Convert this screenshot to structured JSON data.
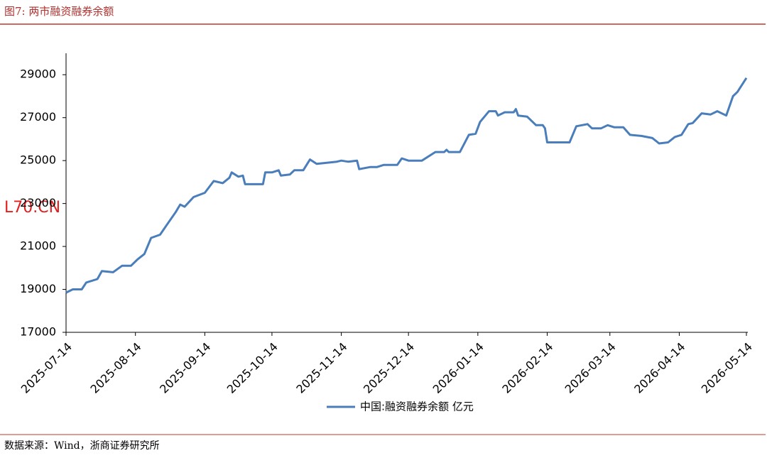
{
  "header": {
    "title": "图7:   两市融资融券余额"
  },
  "watermark": "L70.CN",
  "source": "数据来源：Wind，浙商证券研究所",
  "chart_data": {
    "type": "line",
    "x": [
      "2025-07-14",
      "2025-07-17",
      "2025-07-21",
      "2025-07-23",
      "2025-07-28",
      "2025-07-30",
      "2025-08-04",
      "2025-08-08",
      "2025-08-12",
      "2025-08-15",
      "2025-08-18",
      "2025-08-21",
      "2025-08-25",
      "2025-08-28",
      "2025-09-01",
      "2025-09-03",
      "2025-09-05",
      "2025-09-09",
      "2025-09-14",
      "2025-09-18",
      "2025-09-22",
      "2025-09-25",
      "2025-09-26",
      "2025-09-29",
      "2025-10-01",
      "2025-10-02",
      "2025-10-10",
      "2025-10-11",
      "2025-10-14",
      "2025-10-17",
      "2025-10-18",
      "2025-10-22",
      "2025-10-24",
      "2025-10-28",
      "2025-10-31",
      "2025-11-03",
      "2025-11-12",
      "2025-11-14",
      "2025-11-17",
      "2025-11-21",
      "2025-11-22",
      "2025-11-27",
      "2025-11-30",
      "2025-12-03",
      "2025-12-09",
      "2025-12-11",
      "2025-12-14",
      "2025-12-20",
      "2025-12-26",
      "2025-12-30",
      "2025-12-31",
      "2026-01-01",
      "2026-01-06",
      "2026-01-10",
      "2026-01-13",
      "2026-01-15",
      "2026-01-19",
      "2026-01-22",
      "2026-01-23",
      "2026-01-26",
      "2026-01-30",
      "2026-01-31",
      "2026-02-01",
      "2026-02-05",
      "2026-02-09",
      "2026-02-12",
      "2026-02-13",
      "2026-02-14",
      "2026-02-24",
      "2026-02-27",
      "2026-03-04",
      "2026-03-06",
      "2026-03-10",
      "2026-03-13",
      "2026-03-16",
      "2026-03-20",
      "2026-03-23",
      "2026-03-28",
      "2026-04-02",
      "2026-04-05",
      "2026-04-09",
      "2026-04-12",
      "2026-04-15",
      "2026-04-18",
      "2026-04-20",
      "2026-04-24",
      "2026-04-28",
      "2026-05-01",
      "2026-05-05",
      "2026-05-08",
      "2026-05-10",
      "2026-05-14"
    ],
    "series": [
      {
        "name": "中国:融资融券余额 亿元",
        "color": "#4a7ebb",
        "values": [
          18850,
          19000,
          19000,
          19320,
          19480,
          19850,
          19800,
          20100,
          20100,
          20400,
          20650,
          21400,
          21550,
          22000,
          22600,
          22950,
          22850,
          23300,
          23500,
          24050,
          23950,
          24200,
          24450,
          24250,
          24300,
          23900,
          23900,
          24450,
          24450,
          24550,
          24300,
          24350,
          24550,
          24550,
          25050,
          24850,
          24950,
          25000,
          24950,
          25000,
          24600,
          24700,
          24700,
          24800,
          24800,
          25100,
          25000,
          25000,
          25400,
          25400,
          25500,
          25400,
          25400,
          26200,
          26250,
          26800,
          27300,
          27300,
          27100,
          27250,
          27250,
          27400,
          27100,
          27050,
          26650,
          26650,
          26500,
          25850,
          25850,
          26600,
          26700,
          26500,
          26500,
          26650,
          26550,
          26550,
          26200,
          26150,
          26050,
          25800,
          25850,
          26100,
          26200,
          26700,
          26750,
          27200,
          27150,
          27300,
          27100,
          28000,
          28200,
          28850
        ]
      }
    ],
    "xlim": [
      "2025-07-14",
      "2026-05-14"
    ],
    "xticks": [
      "2025-07-14",
      "2025-08-14",
      "2025-09-14",
      "2025-10-14",
      "2025-11-14",
      "2025-12-14",
      "2026-01-14",
      "2026-02-14",
      "2026-03-14",
      "2026-04-14",
      "2026-05-14"
    ],
    "ylim": [
      17000,
      30000
    ],
    "yticks": [
      17000,
      19000,
      21000,
      23000,
      25000,
      27000,
      29000
    ],
    "grid": false
  }
}
